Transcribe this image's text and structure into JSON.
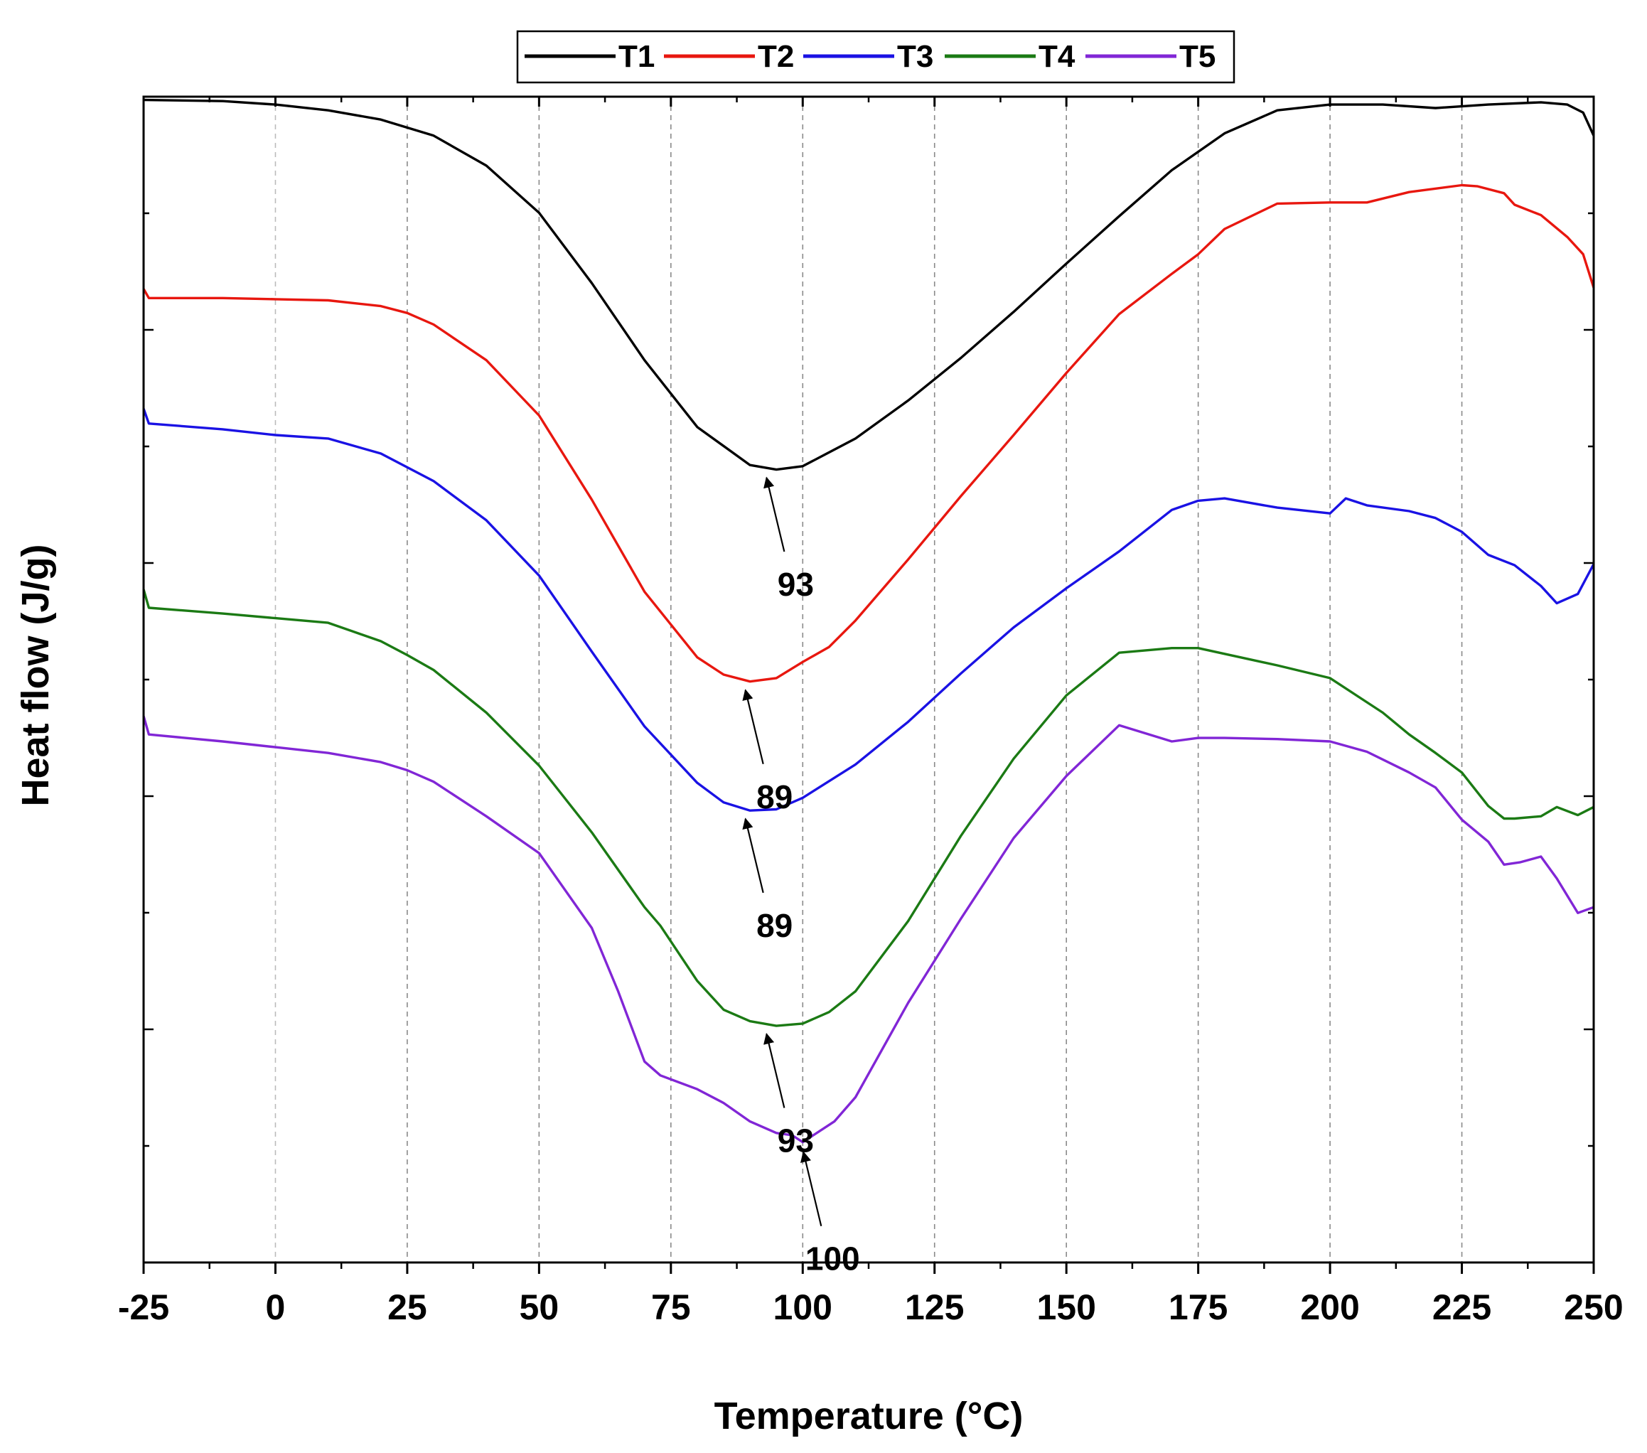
{
  "chart_data": {
    "type": "line",
    "xlabel": "Temperature (°C)",
    "ylabel": "Heat flow (J/g)",
    "xlim": [
      -25,
      250
    ],
    "xticks": [
      -25,
      0,
      25,
      50,
      75,
      100,
      125,
      150,
      175,
      200,
      225,
      250
    ],
    "xtick_labels": [
      "-25",
      "0",
      "25",
      "50",
      "75",
      "100",
      "125",
      "150",
      "175",
      "200",
      "225",
      "250"
    ],
    "ylim": [
      0,
      100
    ],
    "yaxis_note": "arbitrary units, no tick labels; values as relative heat-flow level",
    "grid": "vertical dashed at major x ticks",
    "legend": "top, horizontal, boxed",
    "series": [
      {
        "name": "T1",
        "color": "#000000",
        "x": [
          -25,
          -10,
          0,
          10,
          20,
          30,
          40,
          50,
          60,
          70,
          80,
          90,
          95,
          100,
          110,
          120,
          130,
          140,
          150,
          160,
          170,
          180,
          190,
          200,
          210,
          220,
          230,
          240,
          245,
          248,
          250
        ],
        "y": [
          99.9,
          99.8,
          99.5,
          99,
          98.2,
          96.8,
          94.2,
          90.1,
          84,
          77.3,
          71.5,
          68.2,
          67.8,
          68.1,
          70.5,
          73.8,
          77.5,
          81.5,
          85.7,
          89.8,
          93.8,
          97,
          99,
          99.5,
          99.5,
          99.2,
          99.5,
          99.7,
          99.5,
          98.8,
          96.8
        ]
      },
      {
        "name": "T2",
        "color": "#e8170f",
        "x": [
          -25,
          -24,
          -10,
          0,
          10,
          20,
          25,
          30,
          40,
          50,
          60,
          70,
          80,
          85,
          90,
          95,
          100,
          105,
          110,
          120,
          130,
          140,
          150,
          160,
          170,
          175,
          180,
          190,
          200,
          207,
          215,
          225,
          228,
          233,
          235,
          240,
          245,
          248,
          250
        ],
        "y": [
          83.5,
          82.7,
          82.7,
          82.6,
          82.5,
          82,
          81.4,
          80.4,
          77.3,
          72.5,
          65.2,
          57.2,
          51.5,
          50,
          49.4,
          49.7,
          51.1,
          52.4,
          54.7,
          60,
          65.5,
          70.8,
          76.2,
          81.3,
          84.8,
          86.5,
          88.7,
          90.9,
          91,
          91,
          91.9,
          92.5,
          92.4,
          91.8,
          90.8,
          89.9,
          88,
          86.5,
          83.6
        ]
      },
      {
        "name": "T3",
        "color": "#1a12e4",
        "x": [
          -25,
          -24,
          -10,
          0,
          10,
          20,
          25,
          30,
          40,
          50,
          60,
          70,
          80,
          85,
          90,
          95,
          100,
          110,
          120,
          130,
          140,
          150,
          155,
          160,
          170,
          175,
          180,
          190,
          200,
          203,
          207,
          215,
          220,
          225,
          230,
          235,
          240,
          243,
          247,
          250
        ],
        "y": [
          73.1,
          71.8,
          71.3,
          70.8,
          70.5,
          69.2,
          68,
          66.8,
          63.4,
          58.6,
          52,
          45.5,
          40.6,
          38.9,
          38.2,
          38.3,
          39.3,
          42.2,
          45.9,
          50.1,
          54.1,
          57.5,
          59.1,
          60.7,
          64.3,
          65.1,
          65.3,
          64.5,
          64,
          65.3,
          64.7,
          64.2,
          63.6,
          62.4,
          60.4,
          59.5,
          57.7,
          56.2,
          57,
          59.6
        ]
      },
      {
        "name": "T4",
        "color": "#1b7a14",
        "x": [
          -25,
          -24,
          -10,
          0,
          10,
          20,
          25,
          30,
          40,
          50,
          60,
          70,
          73,
          80,
          85,
          90,
          95,
          100,
          105,
          110,
          120,
          130,
          140,
          150,
          160,
          170,
          175,
          180,
          190,
          200,
          210,
          215,
          220,
          225,
          230,
          233,
          235,
          240,
          243,
          247,
          250
        ],
        "y": [
          57.4,
          55.8,
          55.3,
          54.9,
          54.5,
          52.9,
          51.7,
          50.4,
          46.7,
          42.1,
          36.3,
          29.8,
          28.2,
          23.4,
          20.9,
          19.9,
          19.5,
          19.7,
          20.7,
          22.5,
          28.6,
          36,
          42.7,
          48.2,
          51.9,
          52.3,
          52.3,
          51.8,
          50.8,
          49.7,
          46.7,
          44.8,
          43.2,
          41.5,
          38.6,
          37.5,
          37.5,
          37.7,
          38.5,
          37.8,
          38.5
        ]
      },
      {
        "name": "T5",
        "color": "#8126d6",
        "x": [
          -25,
          -24,
          -10,
          0,
          10,
          20,
          25,
          30,
          40,
          50,
          60,
          65,
          70,
          73,
          80,
          85,
          90,
          95,
          98,
          100,
          106,
          110,
          120,
          130,
          140,
          150,
          160,
          170,
          175,
          180,
          190,
          200,
          207,
          215,
          220,
          225,
          230,
          233,
          236,
          240,
          243,
          247,
          250
        ],
        "y": [
          46.4,
          44.8,
          44.2,
          43.7,
          43.2,
          42.4,
          41.7,
          40.7,
          37.7,
          34.5,
          28,
          22.5,
          16.4,
          15.2,
          14,
          12.8,
          11.2,
          10.2,
          10,
          9.4,
          11.2,
          13.3,
          21.5,
          28.8,
          35.8,
          41.2,
          45.6,
          44.2,
          44.5,
          44.5,
          44.4,
          44.2,
          43.3,
          41.5,
          40.2,
          37.4,
          35.5,
          33.5,
          33.7,
          34.2,
          32.3,
          29.3,
          29.8
        ]
      }
    ],
    "annotations": [
      {
        "series": "T1",
        "text": "93",
        "x": 93
      },
      {
        "series": "T2",
        "text": "89",
        "x": 89
      },
      {
        "series": "T3",
        "text": "89",
        "x": 89
      },
      {
        "series": "T4",
        "text": "93",
        "x": 93
      },
      {
        "series": "T5",
        "text": "100",
        "x": 100
      }
    ]
  }
}
